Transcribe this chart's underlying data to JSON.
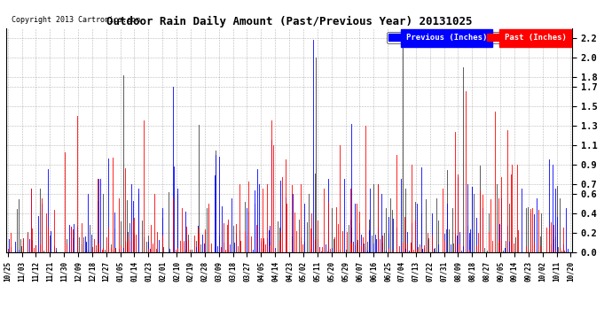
{
  "title": "Outdoor Rain Daily Amount (Past/Previous Year) 20131025",
  "copyright": "Copyright 2013 Cartronics.com",
  "legend_previous": "Previous (Inches)",
  "legend_past": "Past (Inches)",
  "y_ticks": [
    0.0,
    0.2,
    0.4,
    0.6,
    0.7,
    0.9,
    1.1,
    1.3,
    1.5,
    1.7,
    1.8,
    2.0,
    2.2
  ],
  "y_min": 0.0,
  "y_max": 2.3,
  "background_color": "#ffffff",
  "grid_color": "#888888",
  "x_labels": [
    "10/25",
    "11/03",
    "11/12",
    "11/21",
    "11/30",
    "12/09",
    "12/18",
    "12/27",
    "01/05",
    "01/14",
    "01/23",
    "02/01",
    "02/10",
    "02/19",
    "02/28",
    "03/09",
    "03/18",
    "03/27",
    "04/05",
    "04/14",
    "04/23",
    "05/02",
    "05/11",
    "05/20",
    "05/29",
    "06/07",
    "06/16",
    "06/25",
    "07/04",
    "07/13",
    "07/22",
    "07/31",
    "08/09",
    "08/18",
    "08/27",
    "09/05",
    "09/14",
    "09/23",
    "10/02",
    "10/11",
    "10/20"
  ],
  "n_points": 366,
  "blue_color": "#0000FF",
  "red_color": "#FF0000",
  "dark_color": "#404040"
}
